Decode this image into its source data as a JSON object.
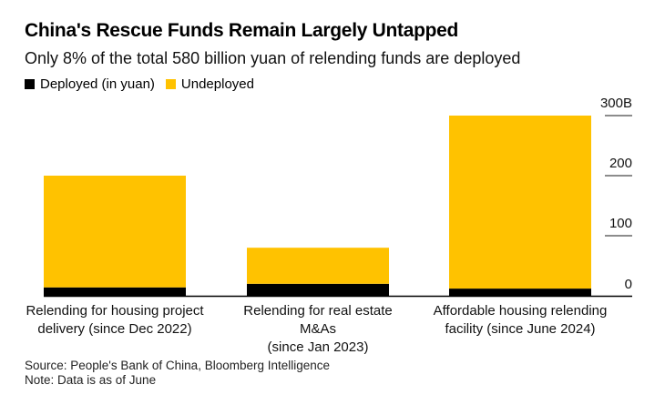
{
  "chart_data": {
    "type": "bar",
    "stacked": true,
    "title": "China's Rescue Funds Remain Largely Untapped",
    "subtitle": "Only 8% of the total 580 billion yuan of relending funds are deployed",
    "categories": [
      [
        "Relending for housing project",
        "delivery (since Dec 2022)"
      ],
      [
        "Relending for real estate M&As",
        "(since Jan 2023)"
      ],
      [
        "Affordable housing relending",
        "facility (since June 2024)"
      ]
    ],
    "series": [
      {
        "name": "Deployed (in yuan)",
        "color": "#000000",
        "values": [
          14,
          20,
          12
        ]
      },
      {
        "name": "Undeployed",
        "color": "#FFC200",
        "values": [
          186,
          60,
          288
        ]
      }
    ],
    "totals": [
      200,
      80,
      300
    ],
    "yaxis": {
      "ticks": [
        0,
        100,
        200,
        300
      ],
      "tick_labels": [
        "0",
        "100",
        "200",
        "300B"
      ],
      "position": "right"
    },
    "ylim": [
      0,
      300
    ],
    "xlabel": "",
    "ylabel": "",
    "legend_position": "top-left",
    "grid": false
  },
  "footer": {
    "source": "Source: People's Bank of China, Bloomberg Intelligence",
    "note": "Note: Data is as of June"
  }
}
